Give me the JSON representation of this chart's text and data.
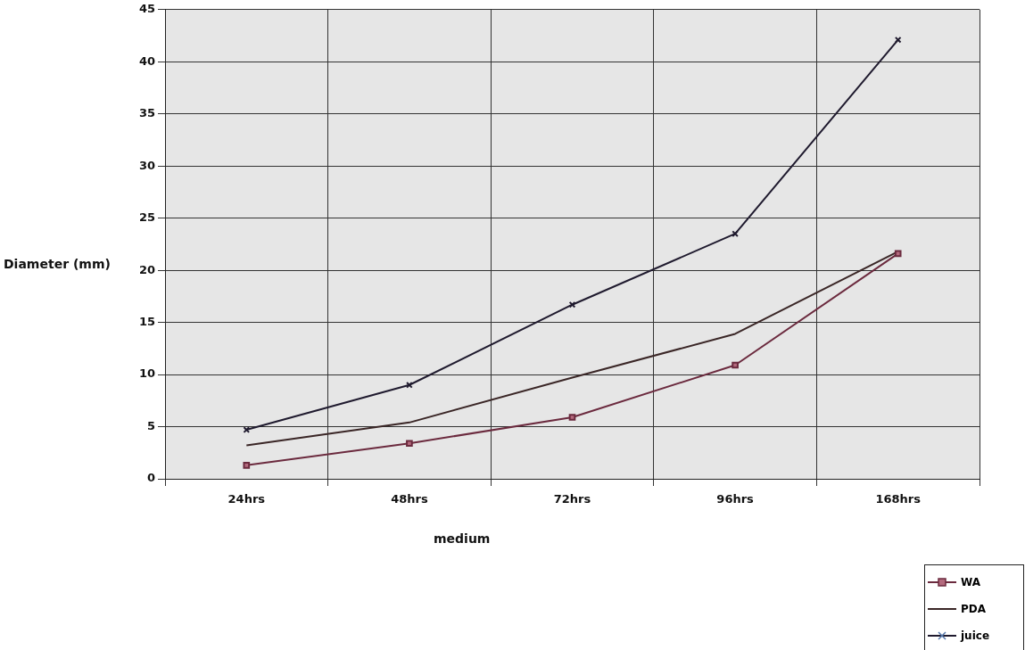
{
  "chart_data": {
    "type": "line",
    "xlabel": "medium",
    "ylabel": "Diameter (mm)",
    "categories": [
      "24hrs",
      "48hrs",
      "72hrs",
      "96hrs",
      "168hrs"
    ],
    "ylim": [
      0,
      45
    ],
    "yticks": [
      0,
      5,
      10,
      15,
      20,
      25,
      30,
      35,
      40,
      45
    ],
    "grid": true,
    "legend": "bottom right",
    "line_style": "solid",
    "series": [
      {
        "name": "WA",
        "color": "#6b2a3e",
        "values": [
          1.3,
          3.4,
          5.9,
          10.9,
          21.6
        ],
        "marker": "square"
      },
      {
        "name": "PDA",
        "color": "#3a2626",
        "values": [
          3.2,
          5.4,
          9.7,
          13.9,
          21.8
        ],
        "marker": "none"
      },
      {
        "name": "juice",
        "color": "#1f1a2e",
        "values": [
          4.7,
          9.0,
          16.7,
          23.5,
          42.1
        ],
        "marker": "cross"
      }
    ]
  }
}
